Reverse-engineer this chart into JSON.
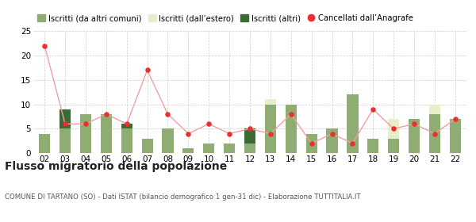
{
  "years": [
    "02",
    "03",
    "04",
    "05",
    "06",
    "07",
    "08",
    "09",
    "10",
    "11",
    "12",
    "13",
    "14",
    "15",
    "16",
    "17",
    "18",
    "19",
    "20",
    "21",
    "22"
  ],
  "iscritti_altri_comuni": [
    4,
    5,
    8,
    8,
    5,
    3,
    5,
    1,
    2,
    2,
    2,
    10,
    10,
    4,
    5,
    12,
    3,
    3,
    7,
    8,
    7
  ],
  "iscritti_estero": [
    0,
    0,
    0,
    0,
    0,
    0,
    0,
    0,
    0,
    0,
    0,
    1,
    0,
    0,
    0,
    0,
    0,
    4,
    0,
    2,
    0
  ],
  "iscritti_altri": [
    0,
    4,
    0,
    0,
    1,
    0,
    0,
    0,
    0,
    0,
    3,
    0,
    0,
    0,
    0,
    0,
    0,
    0,
    0,
    0,
    0
  ],
  "cancellati": [
    22,
    6,
    6,
    8,
    6,
    17,
    8,
    4,
    6,
    4,
    5,
    4,
    8,
    2,
    4,
    2,
    9,
    5,
    6,
    4,
    7
  ],
  "color_altri_comuni": "#8fad72",
  "color_estero": "#e8edca",
  "color_altri": "#3a6b35",
  "color_cancellati": "#e83030",
  "color_line": "#f0a0a0",
  "ylim": [
    0,
    25
  ],
  "yticks": [
    0,
    5,
    10,
    15,
    20,
    25
  ],
  "title": "Flusso migratorio della popolazione",
  "subtitle": "COMUNE DI TARTANO (SO) - Dati ISTAT (bilancio demografico 1 gen-31 dic) - Elaborazione TUTTITALIA.IT",
  "legend_labels": [
    "Iscritti (da altri comuni)",
    "Iscritti (dall’estero)",
    "Iscritti (altri)",
    "Cancellati dall’Anagrafe"
  ],
  "background_color": "#ffffff",
  "grid_color": "#cccccc"
}
